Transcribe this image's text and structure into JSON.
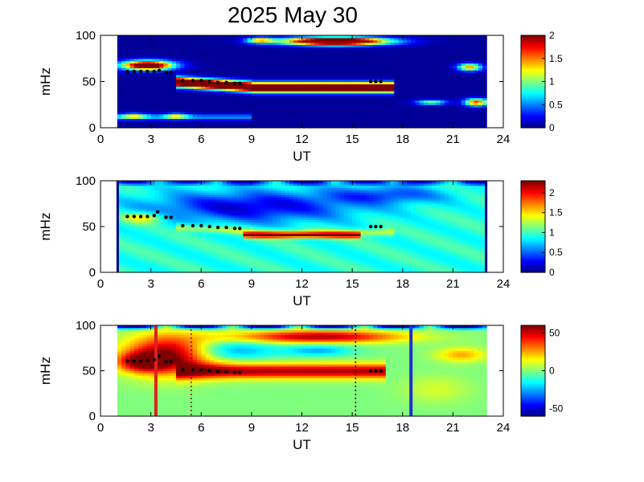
{
  "title": "2025 May 30",
  "chart_data": [
    {
      "type": "heatmap",
      "panel": 1,
      "xlabel": "UT",
      "ylabel": "mHz",
      "xlim": [
        0,
        24
      ],
      "ylim": [
        0,
        100
      ],
      "x_ticks": [
        "0",
        "3",
        "6",
        "9",
        "12",
        "15",
        "18",
        "21",
        "24"
      ],
      "y_ticks": [
        "0",
        "50",
        "100"
      ],
      "data_range_ut": [
        1,
        23
      ],
      "colorbar": {
        "min": 0,
        "max": 2,
        "ticks": [
          "0",
          "0.5",
          "1",
          "1.5",
          "2"
        ]
      },
      "markers": [
        [
          1.6,
          61
        ],
        [
          2.0,
          61
        ],
        [
          2.4,
          61
        ],
        [
          2.8,
          61
        ],
        [
          3.2,
          61
        ],
        [
          3.5,
          62
        ],
        [
          3.9,
          60
        ],
        [
          4.2,
          60
        ],
        [
          4.9,
          51
        ],
        [
          5.5,
          51
        ],
        [
          6.0,
          51
        ],
        [
          6.5,
          50
        ],
        [
          7.0,
          49
        ],
        [
          7.5,
          49
        ],
        [
          8.0,
          48
        ],
        [
          8.3,
          48
        ],
        [
          16.1,
          50
        ],
        [
          16.4,
          50
        ],
        [
          16.7,
          50
        ]
      ]
    },
    {
      "type": "heatmap",
      "panel": 2,
      "xlabel": "UT",
      "ylabel": "mHz",
      "xlim": [
        0,
        24
      ],
      "ylim": [
        0,
        100
      ],
      "x_ticks": [
        "0",
        "3",
        "6",
        "9",
        "12",
        "15",
        "18",
        "21",
        "24"
      ],
      "y_ticks": [
        "0",
        "50",
        "100"
      ],
      "data_range_ut": [
        1,
        23
      ],
      "colorbar": {
        "min": 0,
        "max": 2.3,
        "ticks": [
          "0",
          "0.5",
          "1",
          "1.5",
          "2"
        ]
      },
      "markers": [
        [
          1.6,
          61
        ],
        [
          2.0,
          61
        ],
        [
          2.4,
          61
        ],
        [
          2.8,
          61
        ],
        [
          3.2,
          62
        ],
        [
          3.4,
          66
        ],
        [
          3.9,
          60
        ],
        [
          4.2,
          60
        ],
        [
          4.9,
          51
        ],
        [
          5.5,
          51
        ],
        [
          6.0,
          51
        ],
        [
          6.5,
          50
        ],
        [
          7.0,
          49
        ],
        [
          7.5,
          49
        ],
        [
          8.0,
          48
        ],
        [
          8.3,
          48
        ],
        [
          16.1,
          50
        ],
        [
          16.4,
          50
        ],
        [
          16.7,
          50
        ]
      ]
    },
    {
      "type": "heatmap",
      "panel": 3,
      "xlabel": "UT",
      "ylabel": "mHz",
      "xlim": [
        0,
        24
      ],
      "ylim": [
        0,
        100
      ],
      "x_ticks": [
        "0",
        "3",
        "6",
        "9",
        "12",
        "15",
        "18",
        "21",
        "24"
      ],
      "y_ticks": [
        "0",
        "50",
        "100"
      ],
      "data_range_ut": [
        1,
        23
      ],
      "colorbar": {
        "min": -60,
        "max": 60,
        "ticks": [
          "-50",
          "0",
          "50"
        ]
      },
      "vertical_lines": [
        {
          "ut": 3.3,
          "color": "#e02020",
          "style": "solid"
        },
        {
          "ut": 5.4,
          "color": "#8b0000",
          "style": "dotted"
        },
        {
          "ut": 15.2,
          "color": "#000000",
          "style": "dotted"
        },
        {
          "ut": 18.5,
          "color": "#2030d0",
          "style": "solid"
        }
      ],
      "markers": [
        [
          1.6,
          61
        ],
        [
          2.0,
          61
        ],
        [
          2.4,
          61
        ],
        [
          2.8,
          61
        ],
        [
          3.2,
          62
        ],
        [
          3.5,
          66
        ],
        [
          3.9,
          60
        ],
        [
          4.2,
          60
        ],
        [
          4.9,
          51
        ],
        [
          5.5,
          51
        ],
        [
          6.0,
          51
        ],
        [
          6.5,
          50
        ],
        [
          7.0,
          49
        ],
        [
          7.5,
          49
        ],
        [
          8.0,
          48
        ],
        [
          8.3,
          48
        ],
        [
          16.1,
          50
        ],
        [
          16.4,
          50
        ],
        [
          16.7,
          50
        ]
      ]
    }
  ]
}
